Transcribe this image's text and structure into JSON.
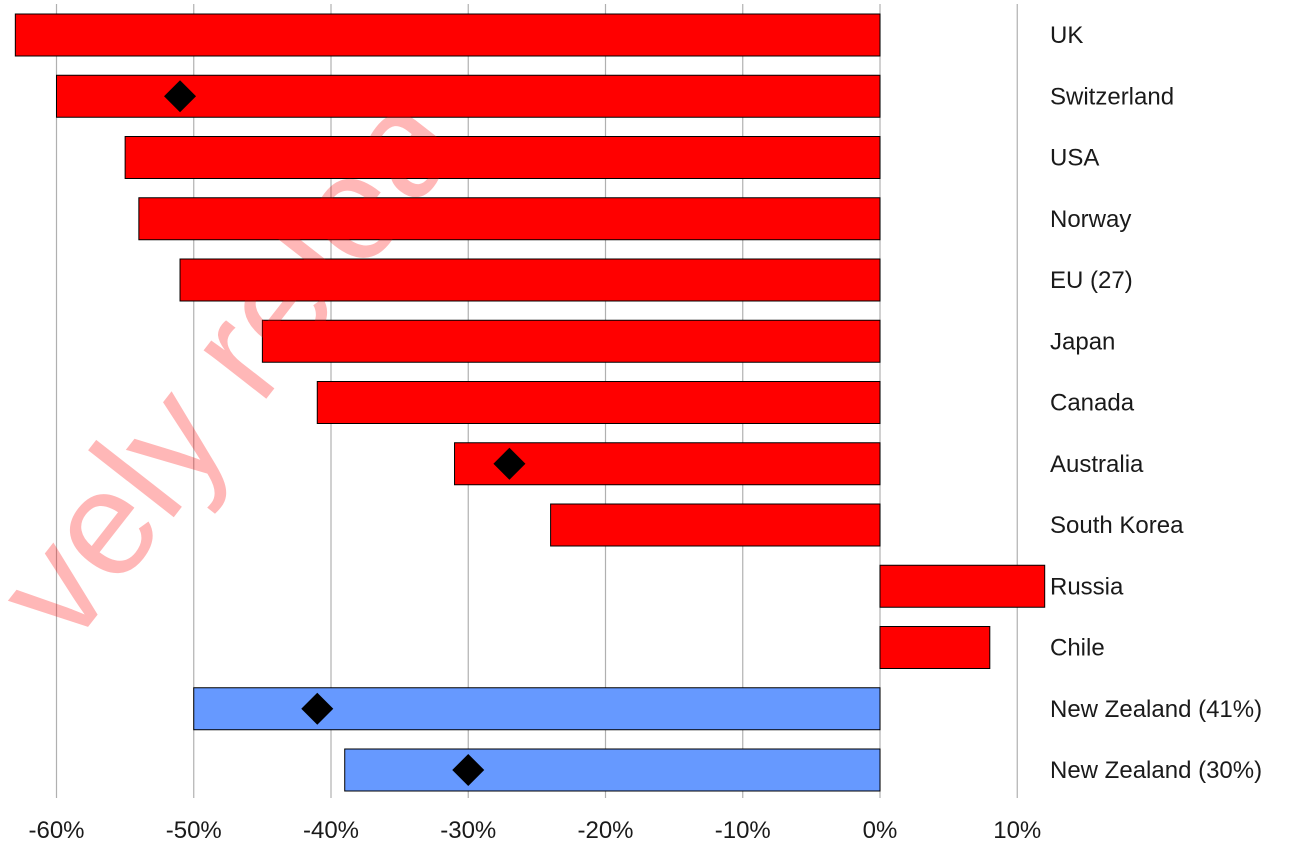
{
  "chart_data": {
    "type": "bar",
    "orientation": "horizontal",
    "categories": [
      "UK",
      "Switzerland",
      "USA",
      "Norway",
      "EU (27)",
      "Japan",
      "Canada",
      "Australia",
      "South Korea",
      "Russia",
      "Chile",
      "New Zealand (41%)",
      "New Zealand (30%)"
    ],
    "values": [
      -63,
      -60,
      -55,
      -54,
      -51,
      -45,
      -41,
      -31,
      -24,
      12,
      8,
      -50,
      -39
    ],
    "bar_colors": [
      "#ff0000",
      "#ff0000",
      "#ff0000",
      "#ff0000",
      "#ff0000",
      "#ff0000",
      "#ff0000",
      "#ff0000",
      "#ff0000",
      "#ff0000",
      "#ff0000",
      "#6699ff",
      "#6699ff"
    ],
    "markers": [
      {
        "category": "Switzerland",
        "value": -51
      },
      {
        "category": "Australia",
        "value": -27
      },
      {
        "category": "New Zealand (41%)",
        "value": -41
      },
      {
        "category": "New Zealand (30%)",
        "value": -30
      }
    ],
    "x_ticks": [
      -60,
      -50,
      -40,
      -30,
      -20,
      -10,
      0,
      10
    ],
    "x_tick_labels": [
      "-60%",
      "-50%",
      "-40%",
      "-30%",
      "-20%",
      "-10%",
      "0%",
      "10%"
    ],
    "xlim": [
      -63.5,
      12.5
    ],
    "grid": "vertical",
    "category_label_position": "right",
    "watermark": "vely relea",
    "colors": {
      "primary": "#ff0000",
      "secondary": "#6699ff",
      "marker": "#000000",
      "grid": "#b0b0b0"
    }
  }
}
